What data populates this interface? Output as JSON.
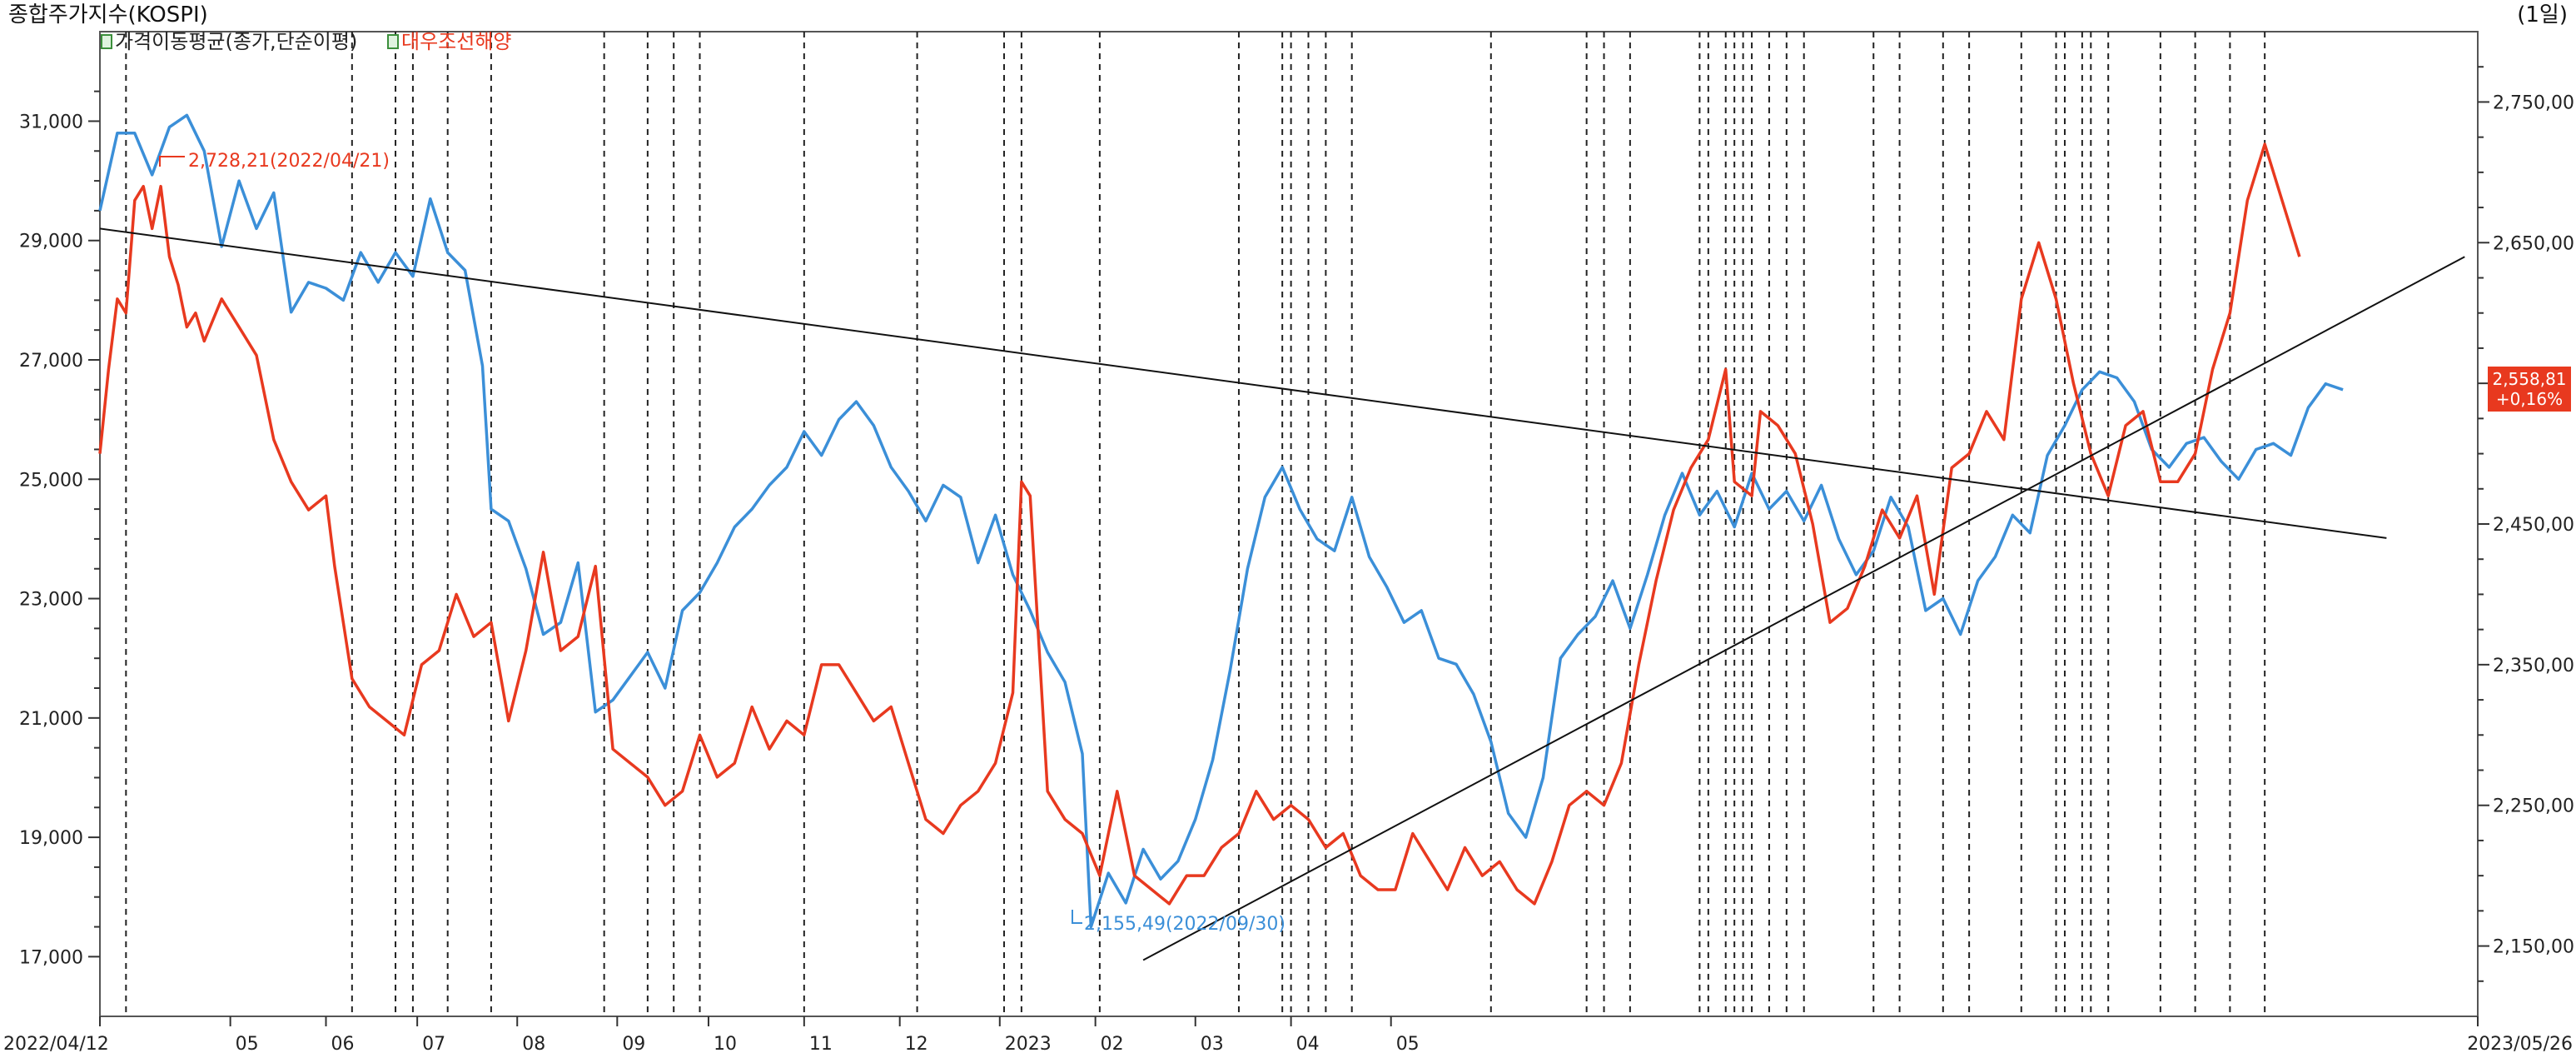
{
  "header": {
    "title": "종합주가지수(KOSPI)",
    "period": "(1일)",
    "legend": [
      {
        "label": "가격이동평균(종가,단순이평)",
        "color": "#222222"
      },
      {
        "label": "대우조선해양",
        "color": "#e8391f"
      }
    ]
  },
  "chart_data": {
    "type": "line",
    "x_labels": [
      "2022/04/12",
      "05",
      "06",
      "07",
      "08",
      "09",
      "10",
      "11",
      "12",
      "2023",
      "02",
      "03",
      "04",
      "05",
      "2023/05/26"
    ],
    "left_axis": {
      "ticks": [
        "31,000",
        "29,000",
        "27,000",
        "25,000",
        "23,000",
        "21,000",
        "19,000",
        "17,000"
      ],
      "min": 16000,
      "max": 32500
    },
    "right_axis": {
      "ticks": [
        "2,750,00",
        "2,650,00",
        "2,558,81",
        "2,450,00",
        "2,350,00",
        "2,250,00",
        "2,150,00"
      ],
      "min": 2100,
      "max": 2800
    },
    "current": {
      "value": "2,558,81",
      "change": "+0,16%",
      "color": "#e8391f"
    },
    "annotations": [
      {
        "text": "2,728,21(2022/04/21)",
        "color": "#e8391f"
      },
      {
        "text": "2,155,49(2022/09/30)",
        "color": "#3b8fd8"
      }
    ],
    "series": [
      {
        "color": "#3b8fd8",
        "axis": "left",
        "points": [
          [
            0,
            29500
          ],
          [
            4,
            30800
          ],
          [
            8,
            30800
          ],
          [
            12,
            30100
          ],
          [
            16,
            30900
          ],
          [
            20,
            31100
          ],
          [
            24,
            30500
          ],
          [
            28,
            28900
          ],
          [
            32,
            30000
          ],
          [
            36,
            29200
          ],
          [
            40,
            29800
          ],
          [
            44,
            27800
          ],
          [
            48,
            28300
          ],
          [
            52,
            28200
          ],
          [
            56,
            28000
          ],
          [
            60,
            28800
          ],
          [
            64,
            28300
          ],
          [
            68,
            28800
          ],
          [
            72,
            28400
          ],
          [
            76,
            29700
          ],
          [
            80,
            28800
          ],
          [
            84,
            28500
          ],
          [
            88,
            26900
          ],
          [
            90,
            24500
          ],
          [
            94,
            24300
          ],
          [
            98,
            23500
          ],
          [
            102,
            22400
          ],
          [
            106,
            22600
          ],
          [
            110,
            23600
          ],
          [
            114,
            21100
          ],
          [
            118,
            21300
          ],
          [
            122,
            21700
          ],
          [
            126,
            22100
          ],
          [
            130,
            21500
          ],
          [
            134,
            22800
          ],
          [
            138,
            23100
          ],
          [
            142,
            23600
          ],
          [
            146,
            24200
          ],
          [
            150,
            24500
          ],
          [
            154,
            24900
          ],
          [
            158,
            25200
          ],
          [
            162,
            25800
          ],
          [
            166,
            25400
          ],
          [
            170,
            26000
          ],
          [
            174,
            26300
          ],
          [
            178,
            25900
          ],
          [
            182,
            25200
          ],
          [
            186,
            24800
          ],
          [
            190,
            24300
          ],
          [
            194,
            24900
          ],
          [
            198,
            24700
          ],
          [
            202,
            23600
          ],
          [
            206,
            24400
          ],
          [
            210,
            23400
          ],
          [
            214,
            22800
          ],
          [
            218,
            22100
          ],
          [
            222,
            21600
          ],
          [
            226,
            20400
          ],
          [
            228,
            17500
          ],
          [
            232,
            18400
          ],
          [
            236,
            17900
          ],
          [
            240,
            18800
          ],
          [
            244,
            18300
          ],
          [
            248,
            18600
          ],
          [
            252,
            19300
          ],
          [
            256,
            20300
          ],
          [
            260,
            21800
          ],
          [
            264,
            23500
          ],
          [
            268,
            24700
          ],
          [
            272,
            25200
          ],
          [
            276,
            24500
          ],
          [
            280,
            24000
          ],
          [
            284,
            23800
          ],
          [
            288,
            24700
          ],
          [
            292,
            23700
          ],
          [
            296,
            23200
          ],
          [
            300,
            22600
          ],
          [
            304,
            22800
          ],
          [
            308,
            22000
          ],
          [
            312,
            21900
          ],
          [
            316,
            21400
          ],
          [
            320,
            20600
          ],
          [
            324,
            19400
          ],
          [
            328,
            19000
          ],
          [
            332,
            20000
          ],
          [
            336,
            22000
          ],
          [
            340,
            22400
          ],
          [
            344,
            22700
          ],
          [
            348,
            23300
          ],
          [
            352,
            22500
          ],
          [
            356,
            23400
          ],
          [
            360,
            24400
          ],
          [
            364,
            25100
          ],
          [
            368,
            24400
          ],
          [
            372,
            24800
          ],
          [
            376,
            24200
          ],
          [
            380,
            25100
          ],
          [
            384,
            24500
          ],
          [
            388,
            24800
          ],
          [
            392,
            24300
          ],
          [
            396,
            24900
          ],
          [
            400,
            24000
          ],
          [
            404,
            23400
          ],
          [
            408,
            23800
          ],
          [
            412,
            24700
          ],
          [
            416,
            24200
          ],
          [
            420,
            22800
          ],
          [
            424,
            23000
          ],
          [
            428,
            22400
          ],
          [
            432,
            23300
          ],
          [
            436,
            23700
          ],
          [
            440,
            24400
          ],
          [
            444,
            24100
          ],
          [
            448,
            25400
          ],
          [
            452,
            25900
          ],
          [
            456,
            26500
          ],
          [
            460,
            26800
          ],
          [
            464,
            26700
          ],
          [
            468,
            26300
          ],
          [
            472,
            25500
          ],
          [
            476,
            25200
          ],
          [
            480,
            25600
          ],
          [
            484,
            25700
          ],
          [
            488,
            25300
          ],
          [
            492,
            25000
          ],
          [
            496,
            25500
          ],
          [
            500,
            25600
          ],
          [
            504,
            25400
          ],
          [
            508,
            26200
          ],
          [
            512,
            26600
          ],
          [
            516,
            26500
          ]
        ]
      },
      {
        "color": "#e8391f",
        "axis": "right",
        "points": [
          [
            0,
            2500
          ],
          [
            2,
            2560
          ],
          [
            4,
            2610
          ],
          [
            6,
            2600
          ],
          [
            8,
            2680
          ],
          [
            10,
            2690
          ],
          [
            12,
            2660
          ],
          [
            14,
            2690
          ],
          [
            16,
            2640
          ],
          [
            18,
            2620
          ],
          [
            20,
            2590
          ],
          [
            22,
            2600
          ],
          [
            24,
            2580
          ],
          [
            28,
            2610
          ],
          [
            32,
            2590
          ],
          [
            36,
            2570
          ],
          [
            40,
            2510
          ],
          [
            44,
            2480
          ],
          [
            48,
            2460
          ],
          [
            52,
            2470
          ],
          [
            54,
            2420
          ],
          [
            58,
            2340
          ],
          [
            62,
            2320
          ],
          [
            66,
            2310
          ],
          [
            70,
            2300
          ],
          [
            74,
            2350
          ],
          [
            78,
            2360
          ],
          [
            82,
            2400
          ],
          [
            86,
            2370
          ],
          [
            90,
            2380
          ],
          [
            94,
            2310
          ],
          [
            98,
            2360
          ],
          [
            102,
            2430
          ],
          [
            106,
            2360
          ],
          [
            110,
            2370
          ],
          [
            114,
            2420
          ],
          [
            118,
            2290
          ],
          [
            122,
            2280
          ],
          [
            126,
            2270
          ],
          [
            130,
            2250
          ],
          [
            134,
            2260
          ],
          [
            138,
            2300
          ],
          [
            142,
            2270
          ],
          [
            146,
            2280
          ],
          [
            150,
            2320
          ],
          [
            154,
            2290
          ],
          [
            158,
            2310
          ],
          [
            162,
            2300
          ],
          [
            166,
            2350
          ],
          [
            170,
            2350
          ],
          [
            174,
            2330
          ],
          [
            178,
            2310
          ],
          [
            182,
            2320
          ],
          [
            186,
            2280
          ],
          [
            190,
            2240
          ],
          [
            194,
            2230
          ],
          [
            198,
            2250
          ],
          [
            202,
            2260
          ],
          [
            206,
            2280
          ],
          [
            210,
            2330
          ],
          [
            212,
            2480
          ],
          [
            214,
            2470
          ],
          [
            218,
            2260
          ],
          [
            222,
            2240
          ],
          [
            226,
            2230
          ],
          [
            230,
            2200
          ],
          [
            234,
            2260
          ],
          [
            238,
            2200
          ],
          [
            242,
            2190
          ],
          [
            246,
            2180
          ],
          [
            250,
            2200
          ],
          [
            254,
            2200
          ],
          [
            258,
            2220
          ],
          [
            262,
            2230
          ],
          [
            266,
            2260
          ],
          [
            270,
            2240
          ],
          [
            274,
            2250
          ],
          [
            278,
            2240
          ],
          [
            282,
            2220
          ],
          [
            286,
            2230
          ],
          [
            290,
            2200
          ],
          [
            294,
            2190
          ],
          [
            298,
            2190
          ],
          [
            302,
            2230
          ],
          [
            306,
            2210
          ],
          [
            310,
            2190
          ],
          [
            314,
            2220
          ],
          [
            318,
            2200
          ],
          [
            322,
            2210
          ],
          [
            326,
            2190
          ],
          [
            330,
            2180
          ],
          [
            334,
            2210
          ],
          [
            338,
            2250
          ],
          [
            342,
            2260
          ],
          [
            346,
            2250
          ],
          [
            350,
            2280
          ],
          [
            354,
            2350
          ],
          [
            358,
            2410
          ],
          [
            362,
            2460
          ],
          [
            366,
            2490
          ],
          [
            370,
            2510
          ],
          [
            374,
            2560
          ],
          [
            376,
            2480
          ],
          [
            380,
            2470
          ],
          [
            382,
            2530
          ],
          [
            386,
            2520
          ],
          [
            390,
            2500
          ],
          [
            394,
            2450
          ],
          [
            398,
            2380
          ],
          [
            402,
            2390
          ],
          [
            406,
            2420
          ],
          [
            410,
            2460
          ],
          [
            414,
            2440
          ],
          [
            418,
            2470
          ],
          [
            422,
            2400
          ],
          [
            426,
            2490
          ],
          [
            430,
            2500
          ],
          [
            434,
            2530
          ],
          [
            438,
            2510
          ],
          [
            442,
            2610
          ],
          [
            446,
            2650
          ],
          [
            450,
            2610
          ],
          [
            454,
            2550
          ],
          [
            458,
            2500
          ],
          [
            462,
            2470
          ],
          [
            466,
            2520
          ],
          [
            470,
            2530
          ],
          [
            474,
            2480
          ],
          [
            478,
            2480
          ],
          [
            482,
            2500
          ],
          [
            486,
            2560
          ],
          [
            490,
            2600
          ],
          [
            494,
            2680
          ],
          [
            498,
            2720
          ],
          [
            502,
            2680
          ],
          [
            506,
            2640
          ]
        ]
      },
      {
        "color": "#111111",
        "axis": "right",
        "points": [
          [
            0,
            2660
          ],
          [
            526,
            2440
          ]
        ]
      },
      {
        "color": "#111111",
        "axis": "right",
        "points": [
          [
            240,
            2140
          ],
          [
            544,
            2640
          ]
        ]
      }
    ],
    "vlines_index": [
      6,
      58,
      68,
      72,
      80,
      90,
      116,
      126,
      132,
      138,
      162,
      188,
      208,
      212,
      230,
      262,
      272,
      274,
      278,
      282,
      288,
      320,
      342,
      346,
      352,
      368,
      370,
      374,
      376,
      378,
      380,
      384,
      388,
      392,
      408,
      414,
      424,
      430,
      442,
      450,
      452,
      456,
      458,
      462,
      474,
      482,
      490,
      498
    ]
  }
}
